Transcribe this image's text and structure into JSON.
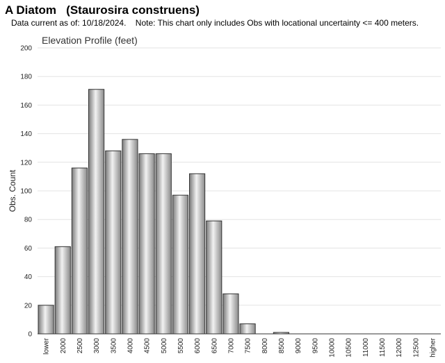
{
  "header": {
    "species_common": "A Diatom",
    "species_scientific": "(Staurosira construens)",
    "note": "Data current as of: 10/18/2024.    Note: This chart only includes Obs with locational uncertainty <= 400 meters."
  },
  "chart_data": {
    "type": "bar",
    "title": "Elevation Profile (feet)",
    "xlabel": "",
    "ylabel": "Obs. Count",
    "ylim": [
      0,
      200
    ],
    "yticks": [
      0,
      20,
      40,
      60,
      80,
      100,
      120,
      140,
      160,
      180,
      200
    ],
    "grid": true,
    "categories": [
      "lower",
      "2000",
      "2500",
      "3000",
      "3500",
      "4000",
      "4500",
      "5000",
      "5500",
      "6000",
      "6500",
      "7000",
      "7500",
      "8000",
      "8500",
      "9000",
      "9500",
      "10000",
      "10500",
      "11000",
      "11500",
      "12000",
      "12500",
      "higher"
    ],
    "values": [
      20,
      61,
      116,
      171,
      128,
      136,
      126,
      126,
      97,
      112,
      79,
      28,
      7,
      0,
      1,
      0,
      0,
      0,
      0,
      0,
      0,
      0,
      0,
      0
    ],
    "bar_color": "#b8b8b8"
  }
}
